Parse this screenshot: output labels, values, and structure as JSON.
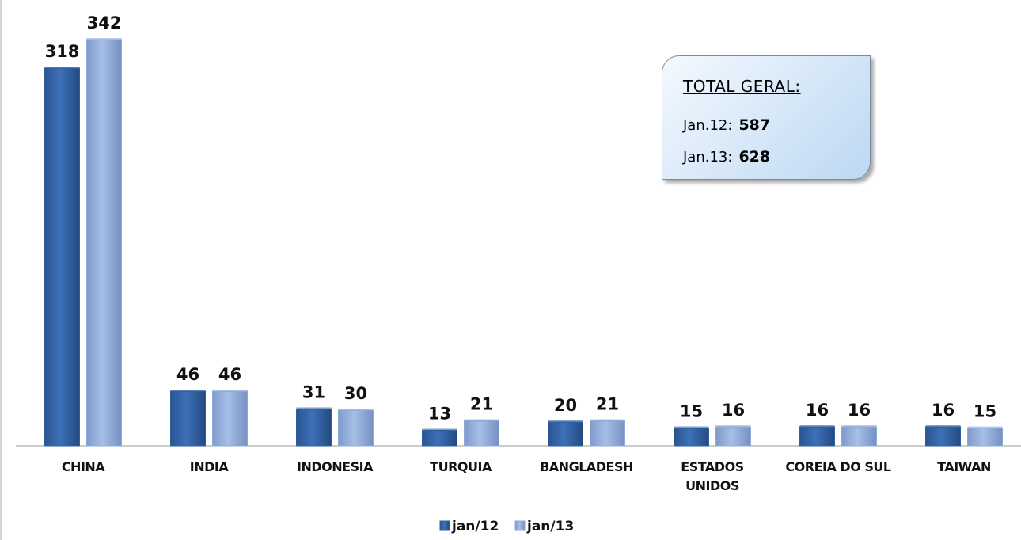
{
  "chart_data": {
    "type": "bar",
    "categories": [
      "CHINA",
      "INDIA",
      "INDONESIA",
      "TURQUIA",
      "BANGLADESH",
      "ESTADOS\nUNIDOS",
      "COREIA DO SUL",
      "TAIWAN"
    ],
    "series": [
      {
        "name": "jan/12",
        "color": "#2f5f9f",
        "values": [
          318,
          46,
          31,
          13,
          20,
          15,
          16,
          16
        ]
      },
      {
        "name": "jan/13",
        "color": "#8eaad8",
        "values": [
          342,
          46,
          30,
          21,
          21,
          16,
          16,
          15
        ]
      }
    ],
    "legend": "bottom",
    "annotation": {
      "title": "TOTAL GERAL:",
      "items": [
        {
          "label": "Jan.12:",
          "value": 587
        },
        {
          "label": "Jan.13:",
          "value": 628
        }
      ]
    }
  }
}
